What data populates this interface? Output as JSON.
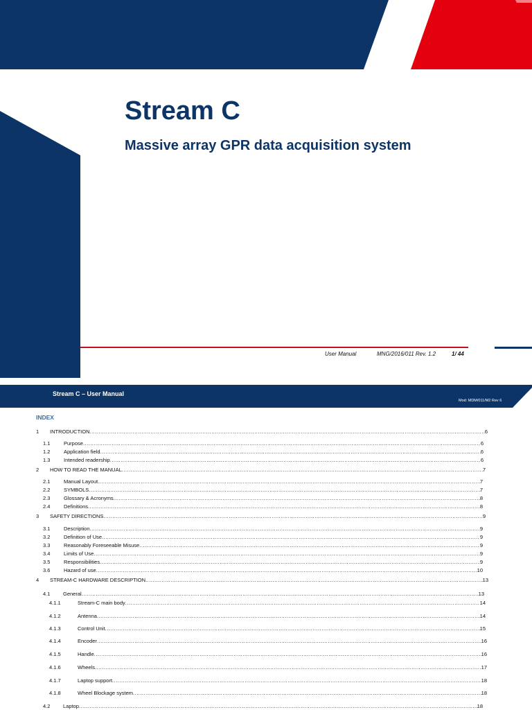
{
  "cover": {
    "title": "Stream C",
    "subtitle": "Massive array GPR data acquisition system",
    "footer": {
      "doc_type": "User Manual",
      "doc_code": "MNG/2016/011  Rev. 1.2",
      "page": "1/ 44"
    }
  },
  "colors": {
    "navy": "#0d3466",
    "red": "#e3000f",
    "index_blue": "#2e6fb5"
  },
  "page2": {
    "header_title": "Stream C – User Manual",
    "header_mod": "Mod: MDM/011/M2 Rev 6",
    "index_heading": "INDEX",
    "toc": [
      {
        "num": "1",
        "title": "INTRODUCTION",
        "page": "6"
      },
      {
        "num": "1.1",
        "title": "Purpose",
        "page": "6"
      },
      {
        "num": "1.2",
        "title": "Application field",
        "page": "6"
      },
      {
        "num": "1.3",
        "title": "Intended readership",
        "page": "6"
      },
      {
        "num": "2",
        "title": "HOW TO READ THE MANUAL",
        "page": "7"
      },
      {
        "num": "2.1",
        "title": "Manual Layout",
        "page": "7"
      },
      {
        "num": "2.2",
        "title": "SYMBOLS",
        "page": "7"
      },
      {
        "num": "2.3",
        "title": "Glossary & Acronyms",
        "page": "8"
      },
      {
        "num": "2.4",
        "title": "Definitions",
        "page": "8"
      },
      {
        "num": "3",
        "title": "SAFETY DIRECTIONS",
        "page": "9"
      },
      {
        "num": "3.1",
        "title": "Description",
        "page": "9"
      },
      {
        "num": "3.2",
        "title": "Definition of Use",
        "page": "9"
      },
      {
        "num": "3.3",
        "title": "Reasonably Foreseeable Misuse",
        "page": "9"
      },
      {
        "num": "3.4",
        "title": "Limits of Use",
        "page": "9"
      },
      {
        "num": "3.5",
        "title": "Responsibilities",
        "page": "9"
      },
      {
        "num": "3.6",
        "title": "Hazard of use",
        "page": "10"
      },
      {
        "num": "4",
        "title": "STREAM-C HARDWARE DESCRIPTION",
        "page": "13"
      },
      {
        "num": "4.1",
        "title": "General",
        "page": "13"
      },
      {
        "num": "4.1.1",
        "title": "Stream-C main body",
        "page": "14"
      },
      {
        "num": "4.1.2",
        "title": "Antenna",
        "page": "14"
      },
      {
        "num": "4.1.3",
        "title": "Control Unit",
        "page": "15"
      },
      {
        "num": "4.1.4",
        "title": "Encoder",
        "page": "16"
      },
      {
        "num": "4.1.5",
        "title": "Handle",
        "page": "16"
      },
      {
        "num": "4.1.6",
        "title": "Wheels",
        "page": "17"
      },
      {
        "num": "4.1.7",
        "title": "Laptop support",
        "page": "18"
      },
      {
        "num": "4.1.8",
        "title": "Wheel Blockage system",
        "page": "18"
      },
      {
        "num": "4.2",
        "title": "Laptop",
        "page": "18"
      }
    ]
  }
}
